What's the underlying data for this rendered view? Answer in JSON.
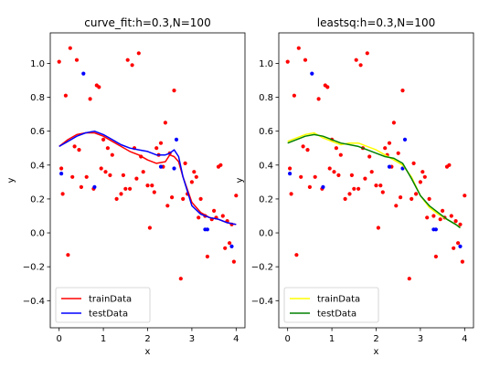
{
  "figure": {
    "title": ""
  },
  "chart_data": [
    {
      "type": "scatter",
      "title": "curve_fit:h=0.3,N=100",
      "xlabel": "x",
      "ylabel": "y",
      "xlim": [
        -0.2,
        4.2
      ],
      "ylim": [
        -0.56,
        1.18
      ],
      "xticks": [
        0,
        1,
        2,
        3,
        4
      ],
      "xtick_labels": [
        "0",
        "1",
        "2",
        "3",
        "4"
      ],
      "yticks": [
        -0.4,
        -0.2,
        0.0,
        0.2,
        0.4,
        0.6,
        0.8,
        1.0
      ],
      "ytick_labels": [
        "−0.4",
        "−0.2",
        "0.0",
        "0.2",
        "0.4",
        "0.6",
        "0.8",
        "1.0"
      ],
      "grid": false,
      "legend_position": "lower-left",
      "scatter_series": [
        {
          "color": "#ff0000",
          "x": [
            0.0,
            0.05,
            0.08,
            0.15,
            0.2,
            0.25,
            0.3,
            0.35,
            0.4,
            0.45,
            0.5,
            0.62,
            0.7,
            0.78,
            0.85,
            0.9,
            0.95,
            1.0,
            1.05,
            1.1,
            1.15,
            1.2,
            1.3,
            1.4,
            1.45,
            1.5,
            1.55,
            1.6,
            1.65,
            1.7,
            1.75,
            1.8,
            1.85,
            1.9,
            2.0,
            2.05,
            2.1,
            2.15,
            2.2,
            2.25,
            2.3,
            2.35,
            2.4,
            2.45,
            2.5,
            2.55,
            2.6,
            2.75,
            2.8,
            2.85,
            2.9,
            3.0,
            3.05,
            3.1,
            3.15,
            3.2,
            3.3,
            3.35,
            3.45,
            3.5,
            3.55,
            3.6,
            3.65,
            3.7,
            3.75,
            3.8,
            3.85,
            3.9,
            3.95,
            4.0
          ],
          "y": [
            1.01,
            0.38,
            0.23,
            0.81,
            -0.13,
            1.09,
            0.33,
            0.51,
            1.02,
            0.49,
            0.27,
            0.33,
            0.79,
            0.26,
            0.87,
            0.86,
            0.38,
            0.55,
            0.36,
            0.5,
            0.34,
            0.46,
            0.2,
            0.23,
            0.34,
            0.26,
            1.02,
            0.26,
            0.99,
            0.5,
            0.32,
            1.06,
            0.45,
            0.36,
            0.28,
            0.03,
            0.28,
            0.24,
            0.5,
            0.46,
            0.53,
            0.39,
            0.65,
            0.16,
            0.47,
            0.21,
            0.84,
            -0.27,
            0.2,
            0.41,
            0.23,
            0.3,
            0.36,
            0.33,
            0.09,
            0.2,
            0.1,
            -0.14,
            0.08,
            0.13,
            0.09,
            0.39,
            0.4,
            0.1,
            -0.09,
            0.07,
            -0.06,
            0.05,
            -0.17,
            0.22
          ]
        },
        {
          "color": "#0000ff",
          "x": [
            0.05,
            0.55,
            0.8,
            2.3,
            2.6,
            2.65,
            3.3,
            3.35,
            3.9
          ],
          "y": [
            0.35,
            0.94,
            0.27,
            0.39,
            0.38,
            0.55,
            0.02,
            0.02,
            -0.08
          ]
        }
      ],
      "line_series": [
        {
          "name": "trainData",
          "color": "#ff0000",
          "x": [
            0.0,
            0.2,
            0.4,
            0.6,
            0.8,
            1.0,
            1.2,
            1.4,
            1.6,
            1.8,
            2.0,
            2.2,
            2.4,
            2.5,
            2.6,
            2.7,
            2.8,
            3.0,
            3.2,
            3.4,
            3.6,
            3.8,
            4.0
          ],
          "y": [
            0.51,
            0.55,
            0.58,
            0.59,
            0.59,
            0.57,
            0.54,
            0.51,
            0.48,
            0.46,
            0.43,
            0.41,
            0.42,
            0.46,
            0.45,
            0.42,
            0.33,
            0.18,
            0.12,
            0.09,
            0.08,
            0.06,
            0.05
          ]
        },
        {
          "name": "testData",
          "color": "#0000ff",
          "x": [
            0.0,
            0.2,
            0.4,
            0.6,
            0.8,
            1.0,
            1.2,
            1.4,
            1.6,
            1.8,
            2.0,
            2.2,
            2.4,
            2.5,
            2.6,
            2.7,
            2.8,
            3.0,
            3.2,
            3.4,
            3.6,
            3.8,
            4.0
          ],
          "y": [
            0.51,
            0.54,
            0.57,
            0.59,
            0.6,
            0.58,
            0.55,
            0.52,
            0.5,
            0.49,
            0.48,
            0.46,
            0.46,
            0.47,
            0.49,
            0.45,
            0.33,
            0.16,
            0.11,
            0.09,
            0.08,
            0.06,
            0.05
          ]
        }
      ]
    },
    {
      "type": "scatter",
      "title": "leastsq:h=0.3,N=100",
      "xlabel": "x",
      "ylabel": "y",
      "xlim": [
        -0.2,
        4.2
      ],
      "ylim": [
        -0.56,
        1.18
      ],
      "xticks": [
        0,
        1,
        2,
        3,
        4
      ],
      "xtick_labels": [
        "0",
        "1",
        "2",
        "3",
        "4"
      ],
      "yticks": [
        -0.4,
        -0.2,
        0.0,
        0.2,
        0.4,
        0.6,
        0.8,
        1.0
      ],
      "ytick_labels": [
        "−0.4",
        "−0.2",
        "0.0",
        "0.2",
        "0.4",
        "0.6",
        "0.8",
        "1.0"
      ],
      "grid": false,
      "legend_position": "lower-left",
      "scatter_series": [
        {
          "color": "#ff0000",
          "x": [
            0.0,
            0.05,
            0.08,
            0.15,
            0.2,
            0.25,
            0.3,
            0.35,
            0.4,
            0.45,
            0.5,
            0.62,
            0.7,
            0.78,
            0.85,
            0.9,
            0.95,
            1.0,
            1.05,
            1.1,
            1.15,
            1.2,
            1.3,
            1.4,
            1.45,
            1.5,
            1.55,
            1.6,
            1.65,
            1.7,
            1.75,
            1.8,
            1.85,
            1.9,
            2.0,
            2.05,
            2.1,
            2.15,
            2.2,
            2.25,
            2.3,
            2.35,
            2.4,
            2.45,
            2.5,
            2.55,
            2.6,
            2.75,
            2.8,
            2.85,
            2.9,
            3.0,
            3.05,
            3.1,
            3.15,
            3.2,
            3.3,
            3.35,
            3.45,
            3.5,
            3.55,
            3.6,
            3.65,
            3.7,
            3.75,
            3.8,
            3.85,
            3.9,
            3.95,
            4.0
          ],
          "y": [
            1.01,
            0.38,
            0.23,
            0.81,
            -0.13,
            1.09,
            0.33,
            0.51,
            1.02,
            0.49,
            0.27,
            0.33,
            0.79,
            0.26,
            0.87,
            0.86,
            0.38,
            0.55,
            0.36,
            0.5,
            0.34,
            0.46,
            0.2,
            0.23,
            0.34,
            0.26,
            1.02,
            0.26,
            0.99,
            0.5,
            0.32,
            1.06,
            0.45,
            0.36,
            0.28,
            0.03,
            0.28,
            0.24,
            0.5,
            0.46,
            0.53,
            0.39,
            0.65,
            0.16,
            0.47,
            0.21,
            0.84,
            -0.27,
            0.2,
            0.41,
            0.23,
            0.3,
            0.36,
            0.33,
            0.09,
            0.2,
            0.1,
            -0.14,
            0.08,
            0.13,
            0.09,
            0.39,
            0.4,
            0.1,
            -0.09,
            0.07,
            -0.06,
            0.05,
            -0.17,
            0.22
          ]
        },
        {
          "color": "#0000ff",
          "x": [
            0.05,
            0.55,
            0.8,
            2.3,
            2.6,
            2.65,
            3.3,
            3.35,
            3.9
          ],
          "y": [
            0.35,
            0.94,
            0.27,
            0.39,
            0.38,
            0.55,
            0.02,
            0.02,
            -0.08
          ]
        }
      ],
      "line_series": [
        {
          "name": "trainData",
          "color": "#ffff00",
          "x": [
            0.0,
            0.2,
            0.4,
            0.6,
            0.8,
            1.0,
            1.2,
            1.4,
            1.6,
            1.8,
            2.0,
            2.2,
            2.4,
            2.6,
            2.8,
            3.0,
            3.2,
            3.4,
            3.6,
            3.8,
            3.9
          ],
          "y": [
            0.54,
            0.56,
            0.58,
            0.59,
            0.56,
            0.54,
            0.52,
            0.53,
            0.53,
            0.51,
            0.49,
            0.46,
            0.43,
            0.4,
            0.33,
            0.22,
            0.15,
            0.11,
            0.08,
            0.05,
            0.03
          ]
        },
        {
          "name": "testData",
          "color": "#008000",
          "x": [
            0.0,
            0.2,
            0.4,
            0.6,
            0.8,
            1.0,
            1.2,
            1.4,
            1.6,
            1.8,
            2.0,
            2.2,
            2.4,
            2.6,
            2.8,
            3.0,
            3.2,
            3.4,
            3.6,
            3.8,
            3.9
          ],
          "y": [
            0.53,
            0.55,
            0.57,
            0.58,
            0.57,
            0.55,
            0.53,
            0.52,
            0.51,
            0.49,
            0.47,
            0.45,
            0.44,
            0.41,
            0.32,
            0.22,
            0.16,
            0.12,
            0.08,
            0.05,
            0.03
          ]
        }
      ]
    }
  ]
}
